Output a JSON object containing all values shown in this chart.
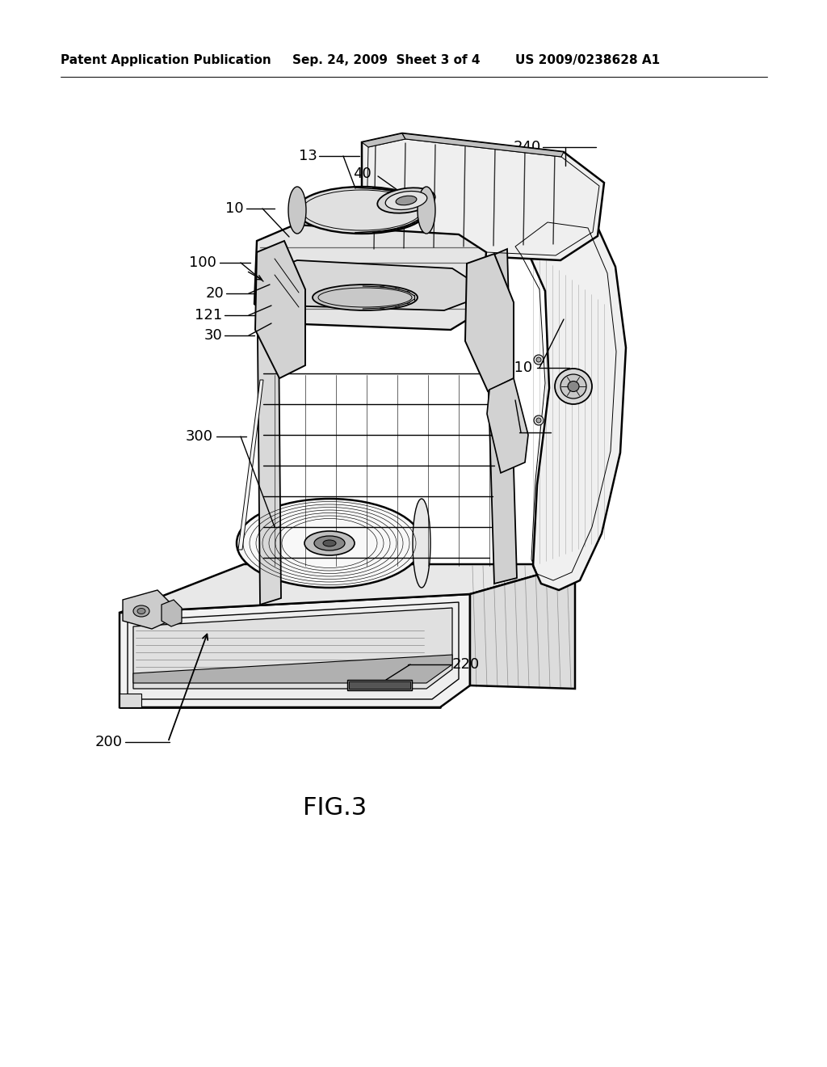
{
  "background_color": "#ffffff",
  "header_left": "Patent Application Publication",
  "header_center": "Sep. 24, 2009  Sheet 3 of 4",
  "header_right": "US 2009/0238628 A1",
  "figure_label": "FIG.3",
  "label_fontsize": 13,
  "header_fontsize": 11,
  "fig_label_fontsize": 22
}
